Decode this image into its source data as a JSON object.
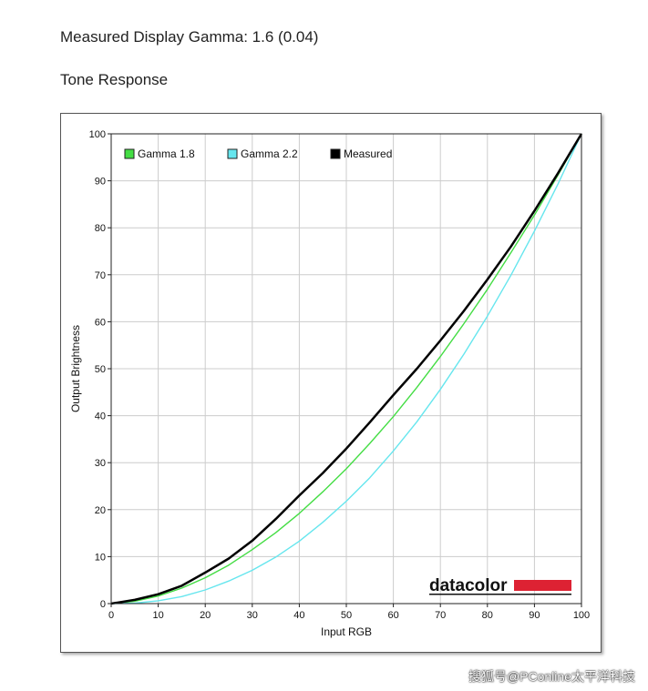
{
  "header": {
    "measured_gamma": "Measured Display Gamma: 1.6 (0.04)",
    "section_title": "Tone Response"
  },
  "watermark": "搜狐号@PConline太平洋科技",
  "logo": "datacolor",
  "colors": {
    "gamma18": "#44dd44",
    "gamma22": "#66e6ee",
    "measured": "#000000",
    "grid": "#cccccc",
    "logo_bar": "#dd2233"
  },
  "chart_data": {
    "type": "line",
    "title": "",
    "xlabel": "Input RGB",
    "ylabel": "Output Brightness",
    "xlim": [
      0,
      100
    ],
    "ylim": [
      0,
      100
    ],
    "xticks": [
      0,
      10,
      20,
      30,
      40,
      50,
      60,
      70,
      80,
      90,
      100
    ],
    "yticks": [
      0,
      10,
      20,
      30,
      40,
      50,
      60,
      70,
      80,
      90,
      100
    ],
    "grid": true,
    "legend_position": "top-left",
    "x": [
      0,
      5,
      10,
      15,
      20,
      25,
      30,
      35,
      40,
      45,
      50,
      55,
      60,
      65,
      70,
      75,
      80,
      85,
      90,
      95,
      100
    ],
    "series": [
      {
        "name": "Gamma 1.8",
        "color_key": "gamma18",
        "values": [
          0,
          0.5,
          1.6,
          3.3,
          5.5,
          8.2,
          11.5,
          15.1,
          19.2,
          23.8,
          28.7,
          34.1,
          39.8,
          46.0,
          52.6,
          59.6,
          66.9,
          74.7,
          82.7,
          91.2,
          100
        ]
      },
      {
        "name": "Gamma 2.2",
        "color_key": "gamma22",
        "values": [
          0,
          0.1,
          0.6,
          1.5,
          2.9,
          4.8,
          7.1,
          9.9,
          13.3,
          17.3,
          21.8,
          26.8,
          32.5,
          38.7,
          45.6,
          53.1,
          61.2,
          69.9,
          79.3,
          89.3,
          100
        ]
      },
      {
        "name": "Measured",
        "color_key": "measured",
        "values": [
          0,
          0.8,
          2.0,
          3.8,
          6.6,
          9.6,
          13.4,
          18.0,
          23.0,
          27.8,
          33.0,
          38.6,
          44.4,
          50.0,
          56.0,
          62.3,
          69.0,
          76.0,
          83.6,
          91.6,
          100
        ]
      }
    ]
  }
}
